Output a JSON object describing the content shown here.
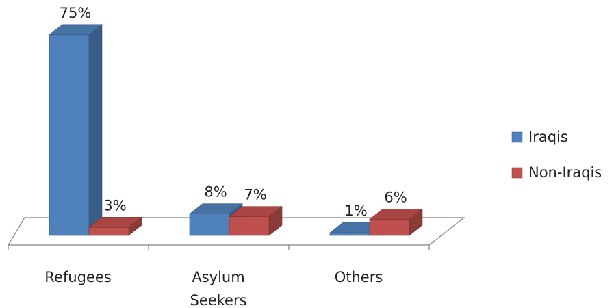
{
  "chart_data": {
    "type": "bar",
    "categories": [
      "Refugees",
      "Asylum Seekers",
      "Others"
    ],
    "series": [
      {
        "name": "Iraqis",
        "values": [
          75,
          8,
          1
        ],
        "data_labels": [
          "75%",
          "8%",
          "1%"
        ]
      },
      {
        "name": "Non-Iraqis",
        "values": [
          3,
          7,
          6
        ],
        "data_labels": [
          "3%",
          "7%",
          "6%"
        ]
      }
    ],
    "legend_position": "right",
    "grid": false,
    "three_d": true,
    "title": "",
    "xlabel": "",
    "ylabel": ""
  },
  "colors": {
    "Iraqis": "#4f81bd",
    "Non-Iraqis": "#c0504d",
    "axis": "#808080"
  }
}
